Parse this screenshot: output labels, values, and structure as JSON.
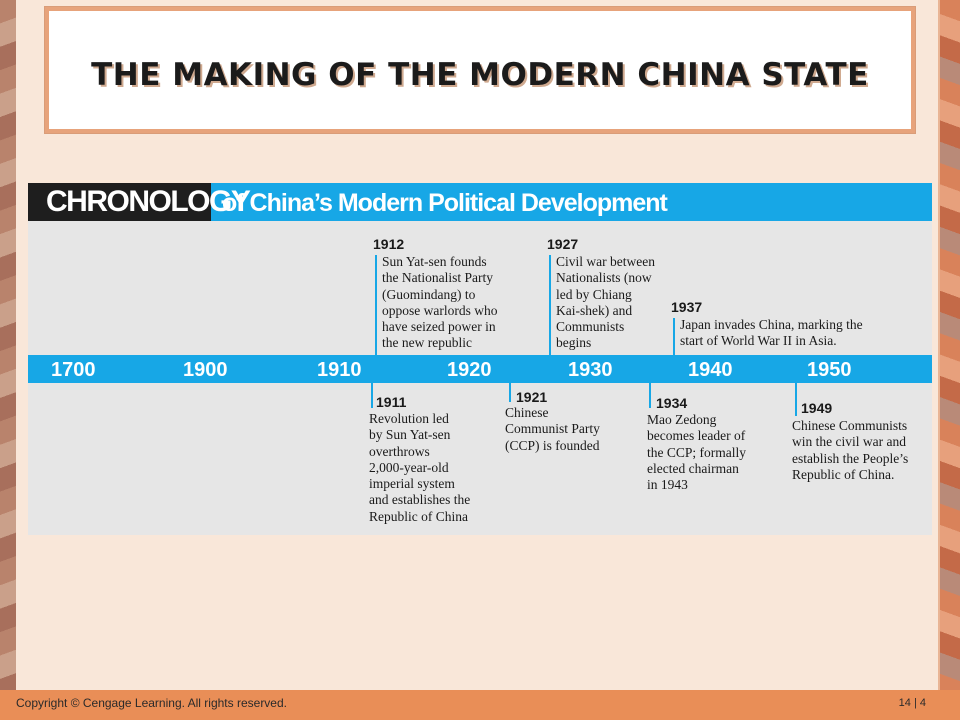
{
  "slide": {
    "title": "THE MAKING OF THE MODERN CHINA STATE"
  },
  "chronology": {
    "label": "CHRONOLOGY",
    "subtitle": "of China’s Modern Political Development",
    "ticks": [
      "1700",
      "1900",
      "1910",
      "1920",
      "1930",
      "1940",
      "1950"
    ],
    "events_above": [
      {
        "year": "1912",
        "text": "Sun Yat-sen founds\nthe Nationalist Party\n(Guomindang) to\noppose warlords who\nhave seized power in\nthe new republic"
      },
      {
        "year": "1927",
        "text": "Civil war between\nNationalists (now\nled by Chiang\nKai-shek) and\nCommunists\nbegins"
      },
      {
        "year": "1937",
        "text": "Japan invades China, marking the\nstart of World War II in Asia."
      }
    ],
    "events_below": [
      {
        "year": "1911",
        "text": "Revolution led\nby Sun Yat-sen\noverthrows\n2,000-year-old\nimperial system\nand establishes the\nRepublic of China"
      },
      {
        "year": "1921",
        "text": "Chinese\nCommunist Party\n(CCP) is founded"
      },
      {
        "year": "1934",
        "text": "Mao Zedong\nbecomes leader of\nthe CCP; formally\nelected chairman\nin 1943"
      },
      {
        "year": "1949",
        "text": "Chinese Communists\nwin the civil war and\nestablish the People’s\nRepublic of China."
      }
    ]
  },
  "footer": {
    "copyright": "Copyright © Cengage Learning.  All rights reserved.",
    "page": "14 | 4"
  },
  "colors": {
    "accent_blue": "#17a7e6",
    "footer_orange": "#e98e57",
    "title_border": "#e7a37b"
  }
}
